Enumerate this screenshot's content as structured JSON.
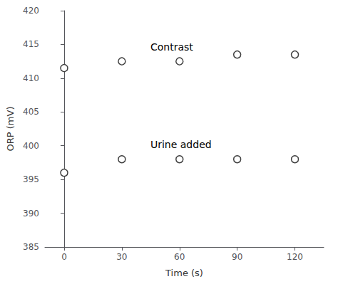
{
  "chart_data": {
    "type": "scatter",
    "x": [
      0,
      30,
      60,
      90,
      120
    ],
    "series": [
      {
        "values": [
          411.5,
          412.5,
          412.5,
          413.5,
          413.5
        ],
        "color": "#404040",
        "marker": "circle"
      },
      {
        "values": [
          396.0,
          398.0,
          398.0,
          398.0,
          398.0
        ],
        "color": "#404040",
        "marker": "circle"
      }
    ],
    "annotations": [
      "Contrast",
      "Urine added"
    ],
    "xlabel": "Time (s)",
    "ylabel": "ORP (mV)",
    "xlim": [
      -10,
      135
    ],
    "ylim": [
      385,
      420
    ],
    "xticks": [
      0,
      30,
      60,
      90,
      120
    ],
    "yticks": [
      385,
      390,
      395,
      400,
      405,
      410,
      415,
      420
    ],
    "grid": false
  }
}
